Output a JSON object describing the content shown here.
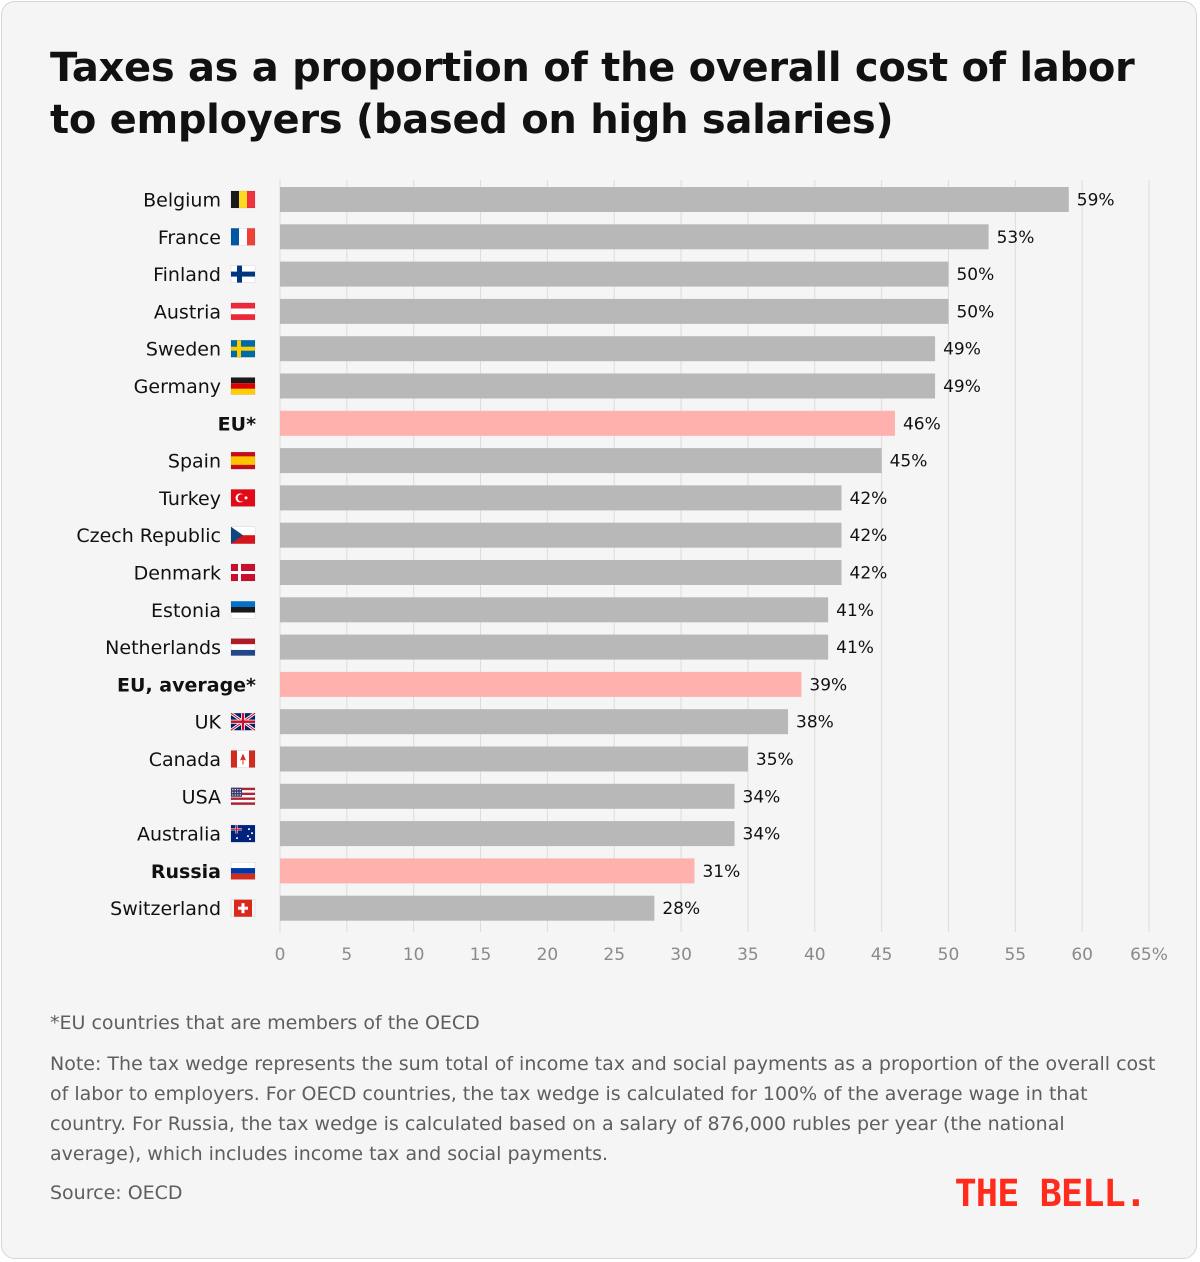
{
  "title": "Taxes as a proportion of the overall cost of labor to employers (based on high salaries)",
  "footnote": "*EU countries that are members of the OECD",
  "note": "Note: The tax wedge represents the sum total of income tax and social payments as a proportion of the overall cost of labor to employers. For OECD countries, the tax wedge is calculated for 100% of the average wage in that country. For Russia, the tax wedge is calculated based on a salary of 876,000 rubles per year (the national average), which includes income tax and social payments.",
  "source": "Source: OECD",
  "logo_text": "THE BELL.",
  "colors": {
    "default_bar": "#b8b8b8",
    "highlight_bar": "#ffb1ad",
    "grid": "#dcdcdc",
    "logo": "#ff2b1c"
  },
  "chart_data": {
    "type": "bar",
    "orientation": "horizontal",
    "title": "Taxes as a proportion of the overall cost of labor to employers (based on high salaries)",
    "xlim": [
      0,
      65
    ],
    "x_ticks": [
      0,
      5,
      10,
      15,
      20,
      25,
      30,
      35,
      40,
      45,
      50,
      55,
      60,
      65
    ],
    "x_tick_labels": [
      "0",
      "5",
      "10",
      "15",
      "20",
      "25",
      "30",
      "35",
      "40",
      "45",
      "50",
      "55",
      "60",
      "65%"
    ],
    "grid": "vertical",
    "categories": [
      {
        "label": "Belgium",
        "flag": "be",
        "value": 59,
        "value_label": "59%",
        "highlight": false
      },
      {
        "label": "France",
        "flag": "fr",
        "value": 53,
        "value_label": "53%",
        "highlight": false
      },
      {
        "label": "Finland",
        "flag": "fi",
        "value": 50,
        "value_label": "50%",
        "highlight": false
      },
      {
        "label": "Austria",
        "flag": "at",
        "value": 50,
        "value_label": "50%",
        "highlight": false
      },
      {
        "label": "Sweden",
        "flag": "se",
        "value": 49,
        "value_label": "49%",
        "highlight": false
      },
      {
        "label": "Germany",
        "flag": "de",
        "value": 49,
        "value_label": "49%",
        "highlight": false
      },
      {
        "label": "EU*",
        "flag": "",
        "value": 46,
        "value_label": "46%",
        "highlight": true
      },
      {
        "label": "Spain",
        "flag": "es",
        "value": 45,
        "value_label": "45%",
        "highlight": false
      },
      {
        "label": "Turkey",
        "flag": "tr",
        "value": 42,
        "value_label": "42%",
        "highlight": false
      },
      {
        "label": "Czech Republic",
        "flag": "cz",
        "value": 42,
        "value_label": "42%",
        "highlight": false
      },
      {
        "label": "Denmark",
        "flag": "dk",
        "value": 42,
        "value_label": "42%",
        "highlight": false
      },
      {
        "label": "Estonia",
        "flag": "ee",
        "value": 41,
        "value_label": "41%",
        "highlight": false
      },
      {
        "label": "Netherlands",
        "flag": "nl",
        "value": 41,
        "value_label": "41%",
        "highlight": false
      },
      {
        "label": "EU, average*",
        "flag": "",
        "value": 39,
        "value_label": "39%",
        "highlight": true
      },
      {
        "label": "UK",
        "flag": "gb",
        "value": 38,
        "value_label": "38%",
        "highlight": false
      },
      {
        "label": "Canada",
        "flag": "ca",
        "value": 35,
        "value_label": "35%",
        "highlight": false
      },
      {
        "label": "USA",
        "flag": "us",
        "value": 34,
        "value_label": "34%",
        "highlight": false
      },
      {
        "label": "Australia",
        "flag": "au",
        "value": 34,
        "value_label": "34%",
        "highlight": false
      },
      {
        "label": "Russia",
        "flag": "ru",
        "value": 31,
        "value_label": "31%",
        "highlight": true
      },
      {
        "label": "Switzerland",
        "flag": "ch",
        "value": 28,
        "value_label": "28%",
        "highlight": false
      }
    ]
  }
}
